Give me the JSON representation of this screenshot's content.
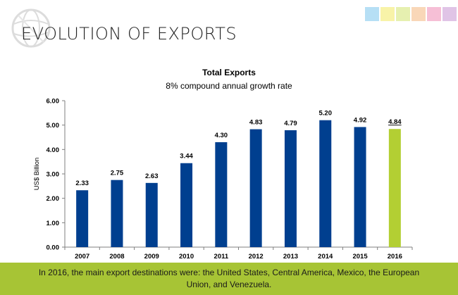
{
  "slide": {
    "title": "EVOLUTION OF EXPORTS",
    "footer_text": "In 2016, the main export destinations were: the United States, Central America, Mexico, the European Union, and Venezuela."
  },
  "colors": {
    "bar": "#003f8f",
    "highlight_bar": "#b3cf33",
    "footer_band": "#a7c435",
    "swatches": [
      "#b6dff5",
      "#f8f3a8",
      "#e6f0b0",
      "#f9d7b8",
      "#f6bfd6",
      "#e0c4e6"
    ]
  },
  "icons": {
    "logo": "globe-icon"
  },
  "chart_data": {
    "type": "bar",
    "title": "Total Exports",
    "subtitle": "8% compound annual growth rate",
    "ylabel": "US$ Billion",
    "xlabel": "",
    "categories": [
      "2007",
      "2008",
      "2009",
      "2010",
      "2011",
      "2012",
      "2013",
      "2014",
      "2015",
      "2016"
    ],
    "values": [
      2.33,
      2.75,
      2.63,
      3.44,
      4.3,
      4.83,
      4.79,
      5.2,
      4.92,
      4.84
    ],
    "value_labels": [
      "2.33",
      "2.75",
      "2.63",
      "3.44",
      "4.30",
      "4.83",
      "4.79",
      "5.20",
      "4.92",
      "4.84"
    ],
    "highlight_category": "2016",
    "ylim": [
      0,
      6
    ],
    "yticks": [
      "0.00",
      "1.00",
      "2.00",
      "3.00",
      "4.00",
      "5.00",
      "6.00"
    ],
    "grid": false,
    "legend": "none"
  }
}
